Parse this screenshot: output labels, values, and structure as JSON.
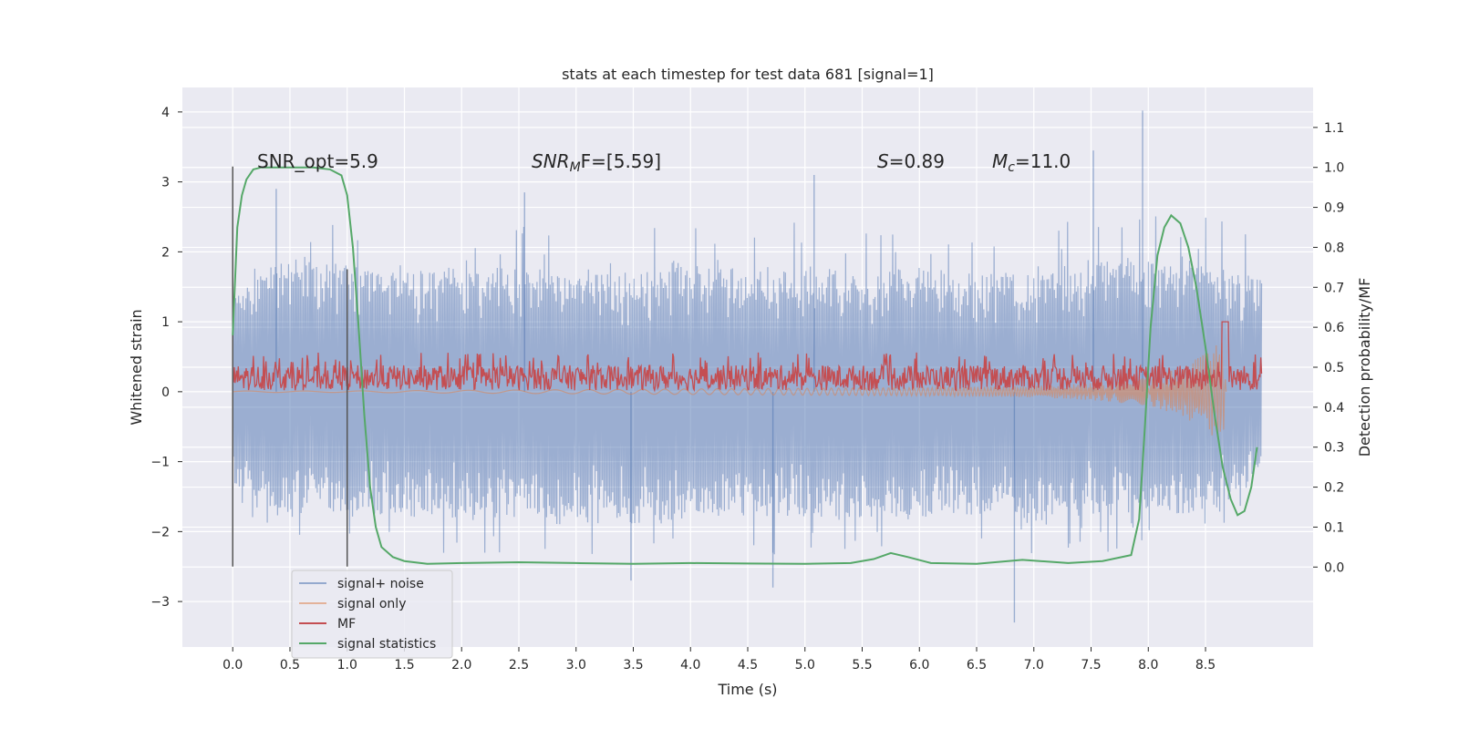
{
  "chart_data": {
    "type": "line",
    "title": "stats at each timestep for test data 681 [signal=1]",
    "xlabel": "Time (s)",
    "ylabel": "Whitened strain",
    "ylabel_right": "Detection probability/MF",
    "xlim": [
      -0.44,
      9.44
    ],
    "ylim": [
      -3.65,
      4.35
    ],
    "ylim_right": [
      -0.2,
      1.2
    ],
    "x_ticks": [
      "0.0",
      "0.5",
      "1.0",
      "1.5",
      "2.0",
      "2.5",
      "3.0",
      "3.5",
      "4.0",
      "4.5",
      "5.0",
      "5.5",
      "6.0",
      "6.5",
      "7.0",
      "7.5",
      "8.0",
      "8.5"
    ],
    "y_ticks": [
      "−3",
      "−2",
      "−1",
      "0",
      "1",
      "2",
      "3",
      "4"
    ],
    "y_ticks_right": [
      "0.0",
      "0.1",
      "0.2",
      "0.3",
      "0.4",
      "0.5",
      "0.6",
      "0.7",
      "0.8",
      "0.9",
      "1.0",
      "1.1"
    ],
    "grid": true,
    "legend_position": "lower-left",
    "annotations": {
      "snr_opt": "SNR_opt=5.9",
      "snr_mf_sym": "SNR",
      "snr_mf_sub": "M",
      "snr_mf_rest": "F=[5.59]",
      "s_sym": "S",
      "s_rest": "=0.89",
      "mc_sym": "M",
      "mc_sub": "c",
      "mc_rest": "=11.0"
    },
    "vertical_markers": [
      0.0,
      1.0
    ],
    "series": [
      {
        "name": "signal+ noise",
        "color": "#4c72b0",
        "envelope": {
          "x": [
            0.0,
            0.5,
            1.0,
            1.5,
            2.0,
            2.5,
            3.0,
            3.5,
            4.0,
            4.5,
            5.0,
            5.5,
            6.0,
            6.5,
            7.0,
            7.5,
            8.0,
            8.5,
            9.0
          ],
          "upper": [
            1.4,
            2.0,
            1.8,
            1.7,
            1.8,
            1.8,
            1.8,
            1.7,
            1.8,
            1.8,
            1.8,
            1.7,
            1.8,
            1.7,
            1.7,
            1.9,
            2.0,
            1.9,
            1.6
          ],
          "lower": [
            -1.4,
            -1.8,
            -1.7,
            -1.8,
            -1.8,
            -1.8,
            -1.8,
            -1.9,
            -1.8,
            -1.8,
            -1.8,
            -1.8,
            -1.8,
            -1.8,
            -1.9,
            -1.8,
            -1.7,
            -1.8,
            -1.2
          ]
        },
        "peaks": [
          {
            "x": 0.38,
            "y": 2.9
          },
          {
            "x": 2.55,
            "y": 2.85
          },
          {
            "x": 5.08,
            "y": 3.1
          },
          {
            "x": 7.52,
            "y": 3.45
          },
          {
            "x": 7.95,
            "y": 4.02
          },
          {
            "x": 6.83,
            "y": -3.3
          },
          {
            "x": 4.72,
            "y": -2.8
          },
          {
            "x": 3.48,
            "y": -2.7
          }
        ]
      },
      {
        "name": "signal only",
        "color": "#dd8452",
        "x": [
          0.0,
          1.0,
          2.0,
          3.0,
          4.0,
          5.0,
          6.0,
          7.0,
          7.5,
          8.0,
          8.3,
          8.5,
          8.65,
          8.68
        ],
        "amplitude": [
          0.01,
          0.01,
          0.02,
          0.03,
          0.04,
          0.05,
          0.06,
          0.08,
          0.12,
          0.2,
          0.35,
          0.55,
          0.75,
          0.0
        ]
      },
      {
        "name": "MF",
        "color": "#c44e52",
        "center": 0.2,
        "spread": 0.18,
        "spike": {
          "x": 8.67,
          "y": 1.0
        }
      },
      {
        "name": "signal statistics",
        "color": "#55a868",
        "axis": "right",
        "x": [
          0.0,
          0.04,
          0.08,
          0.12,
          0.18,
          0.25,
          0.35,
          0.5,
          0.7,
          0.85,
          0.95,
          1.0,
          1.05,
          1.1,
          1.15,
          1.2,
          1.25,
          1.3,
          1.4,
          1.5,
          1.7,
          2.0,
          2.5,
          3.0,
          3.5,
          4.0,
          4.5,
          5.0,
          5.4,
          5.6,
          5.75,
          5.9,
          6.1,
          6.5,
          6.9,
          7.3,
          7.6,
          7.85,
          7.92,
          7.97,
          8.02,
          8.08,
          8.14,
          8.2,
          8.28,
          8.35,
          8.42,
          8.5,
          8.58,
          8.65,
          8.72,
          8.78,
          8.84,
          8.9,
          8.95
        ],
        "y": [
          0.58,
          0.85,
          0.93,
          0.97,
          0.995,
          1.0,
          1.0,
          1.0,
          1.0,
          0.995,
          0.98,
          0.93,
          0.8,
          0.6,
          0.38,
          0.2,
          0.1,
          0.05,
          0.025,
          0.015,
          0.008,
          0.01,
          0.012,
          0.01,
          0.008,
          0.01,
          0.009,
          0.008,
          0.01,
          0.02,
          0.035,
          0.025,
          0.01,
          0.008,
          0.018,
          0.01,
          0.015,
          0.03,
          0.12,
          0.35,
          0.6,
          0.78,
          0.85,
          0.88,
          0.86,
          0.8,
          0.7,
          0.55,
          0.38,
          0.25,
          0.17,
          0.13,
          0.14,
          0.2,
          0.3
        ]
      }
    ]
  }
}
